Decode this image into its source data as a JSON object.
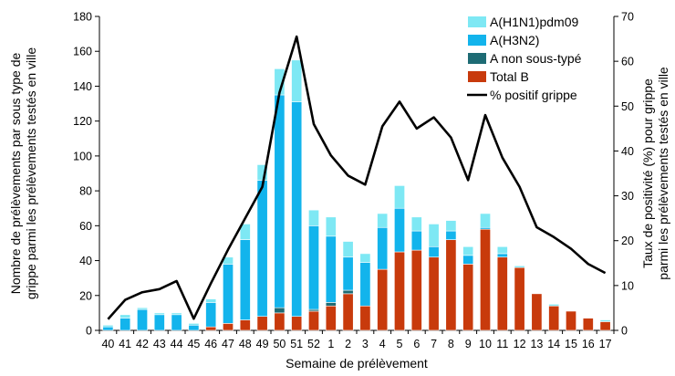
{
  "chart_data": {
    "type": "bar",
    "stacked": true,
    "xlabel": "Semaine de prélèvement",
    "ylabel_left": [
      "Nombre de prélèvements par sous type de",
      "grippe parmi les prélèvements testés en ville"
    ],
    "ylabel_right": [
      "Taux de positivité (%) pour grippe",
      "parmi les prélèvements testés en ville"
    ],
    "ylim_left": [
      0,
      180
    ],
    "ylim_right": [
      0,
      70
    ],
    "yticks_left": [
      0,
      20,
      40,
      60,
      80,
      100,
      120,
      140,
      160,
      180
    ],
    "yticks_right": [
      0,
      10,
      20,
      30,
      40,
      50,
      60,
      70
    ],
    "legend_position": "top-right",
    "categories": [
      "40",
      "41",
      "42",
      "43",
      "44",
      "45",
      "46",
      "47",
      "48",
      "49",
      "50",
      "51",
      "52",
      "1",
      "2",
      "3",
      "4",
      "5",
      "6",
      "7",
      "8",
      "9",
      "10",
      "11",
      "12",
      "13",
      "14",
      "15",
      "16",
      "17"
    ],
    "series": [
      {
        "name": "Total B",
        "color": "#C83A0C",
        "axis": "left",
        "values": [
          0,
          0,
          0,
          0,
          0,
          0,
          2,
          4,
          6,
          8,
          10,
          8,
          11,
          14,
          21,
          14,
          35,
          45,
          46,
          42,
          52,
          38,
          58,
          42,
          36,
          21,
          14,
          11,
          7,
          5
        ]
      },
      {
        "name": "A non sous-typé",
        "color": "#1E6B74",
        "axis": "left",
        "values": [
          0,
          0,
          0,
          0,
          0,
          0,
          0,
          0,
          0,
          0,
          3,
          0,
          1,
          2,
          2,
          0,
          0,
          0,
          0,
          0,
          0,
          0,
          0,
          0,
          0,
          0,
          0,
          0,
          0,
          0
        ]
      },
      {
        "name": "A(H3N2)",
        "color": "#13B4EC",
        "axis": "left",
        "values": [
          2,
          7,
          12,
          9,
          9,
          3,
          14,
          34,
          46,
          78,
          122,
          123,
          48,
          38,
          19,
          25,
          24,
          25,
          11,
          6,
          5,
          5,
          1,
          2,
          0,
          0,
          0,
          0,
          0,
          0
        ]
      },
      {
        "name": "A(H1N1)pdm09",
        "color": "#7EE8F4",
        "axis": "left",
        "values": [
          1,
          2,
          1,
          1,
          1,
          1,
          2,
          4,
          9,
          9,
          15,
          24,
          9,
          11,
          9,
          5,
          8,
          13,
          8,
          13,
          6,
          5,
          8,
          4,
          1,
          0,
          1,
          0,
          0,
          1
        ]
      },
      {
        "name": "% positif grippe",
        "type": "line",
        "color": "#000000",
        "axis": "right",
        "values": [
          2.5,
          6.8,
          8.5,
          9.2,
          11,
          2.6,
          10.5,
          18,
          25,
          32,
          53,
          65.5,
          46,
          39,
          34.5,
          32.5,
          45.5,
          51,
          45,
          47.5,
          43,
          33.5,
          48,
          38.5,
          32,
          23,
          20.8,
          18.2,
          14.8,
          12.8
        ]
      }
    ],
    "legend": [
      "A(H1N1)pdm09",
      "A(H3N2)",
      "A non sous-typé",
      "Total B",
      "% positif grippe"
    ]
  }
}
